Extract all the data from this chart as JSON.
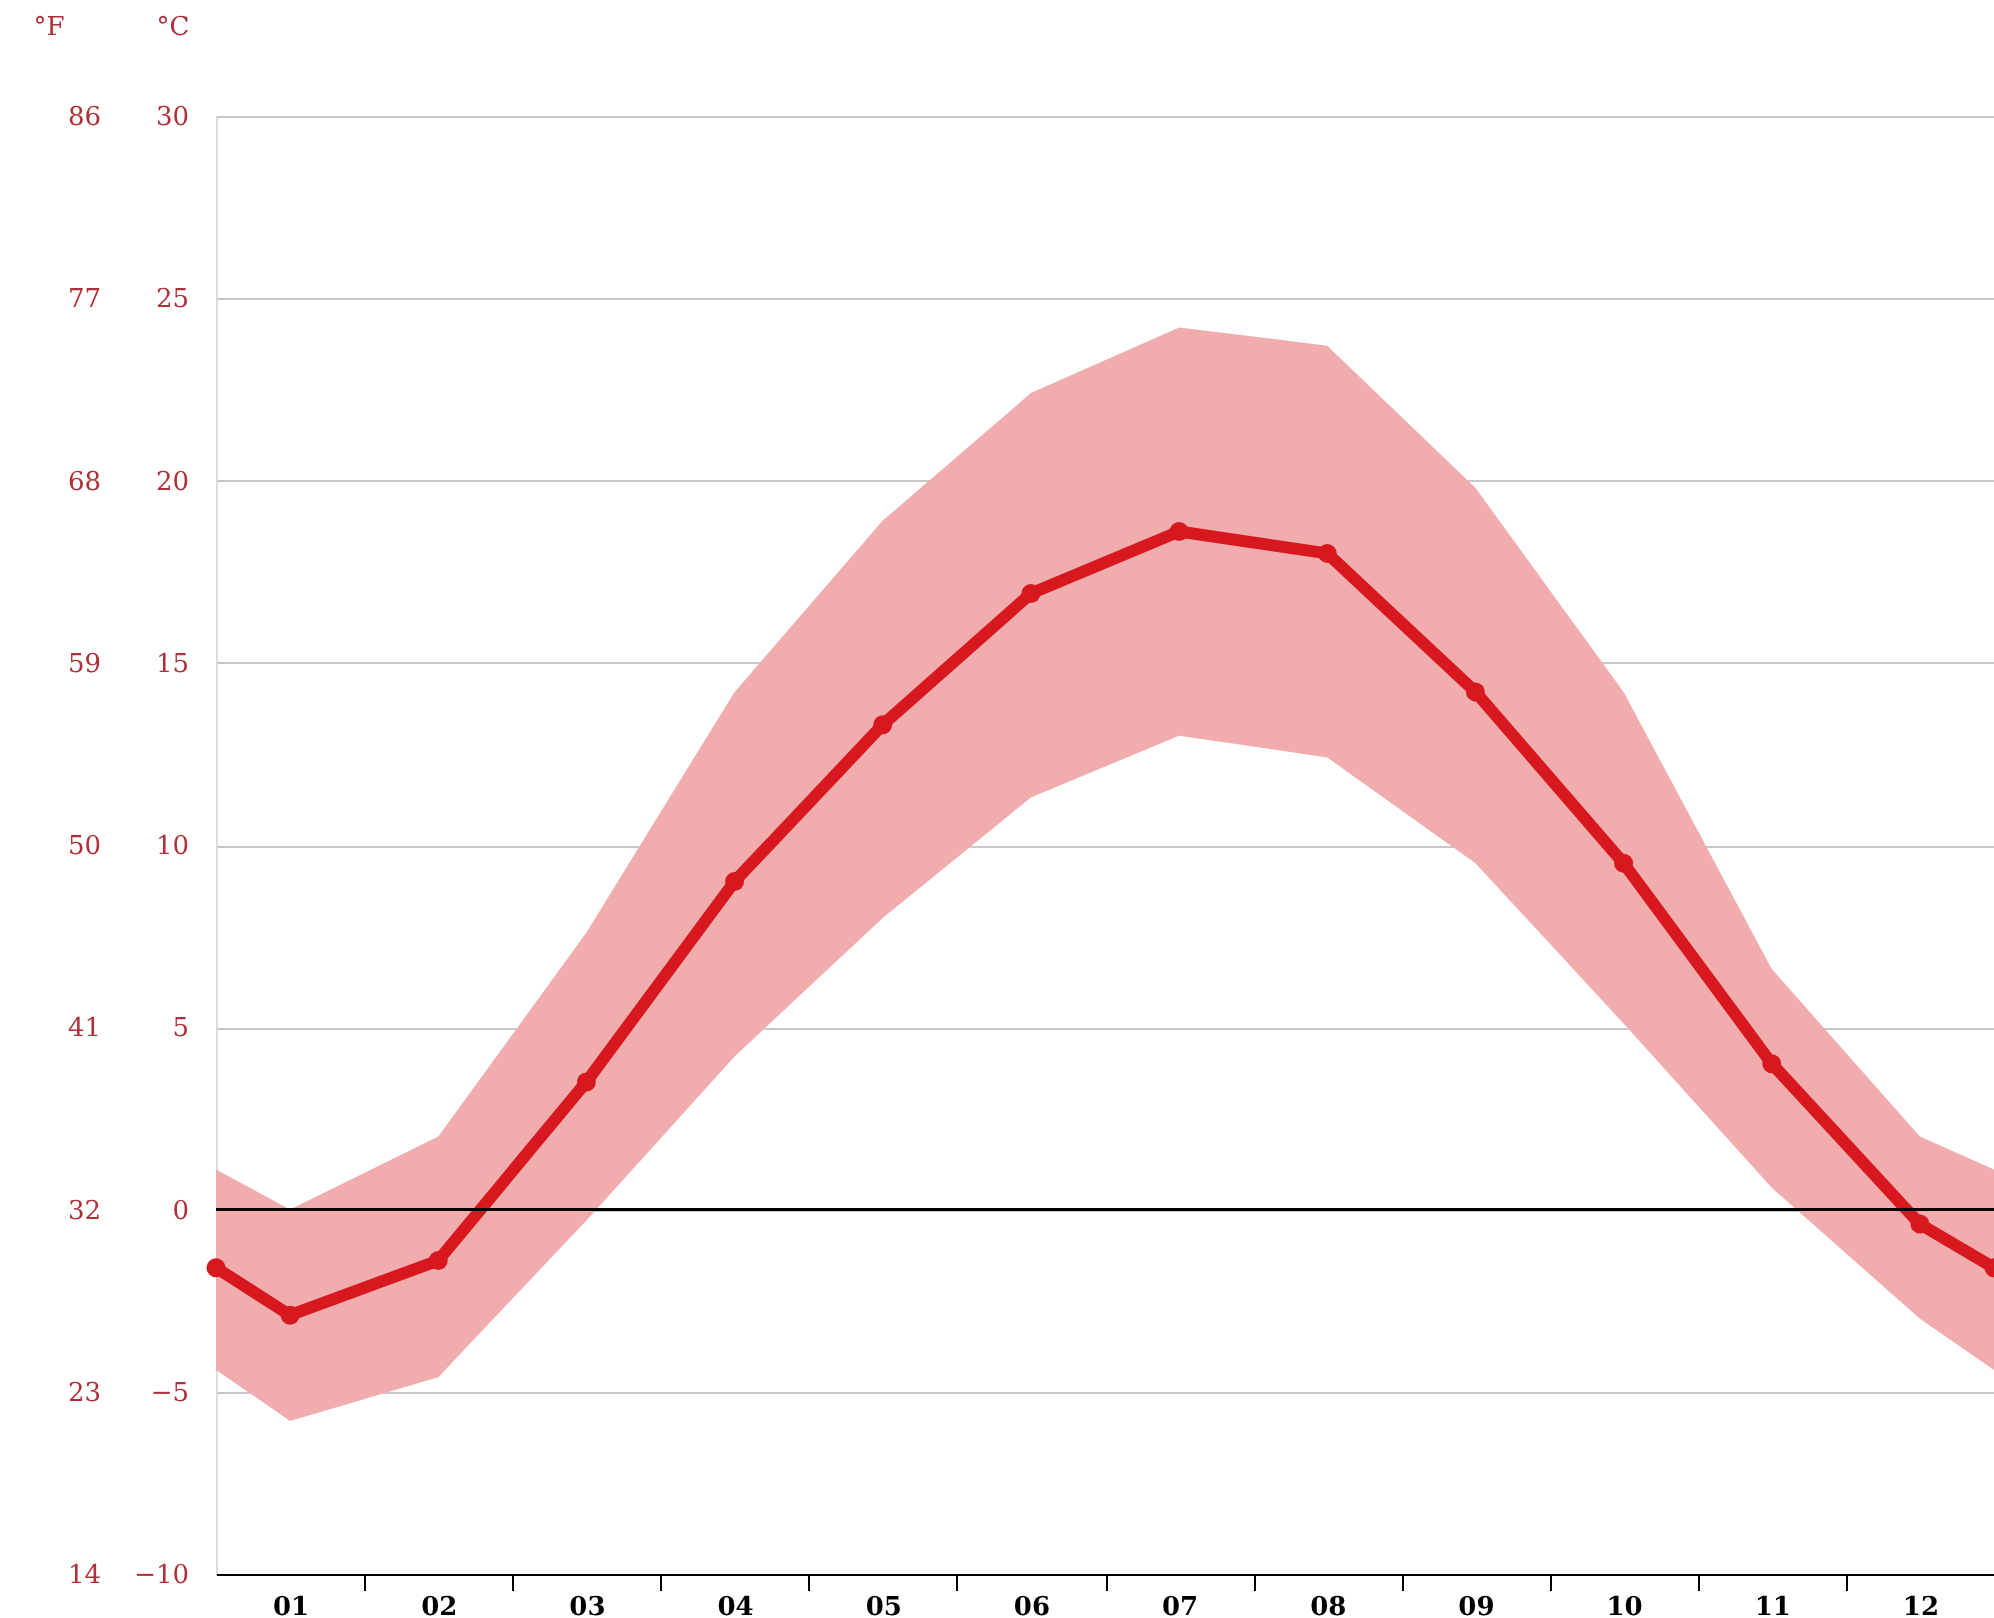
{
  "chart_data": {
    "type": "line",
    "x": [
      0.5,
      1,
      2,
      3,
      4,
      5,
      6,
      7,
      8,
      9,
      10,
      11,
      12,
      12.5
    ],
    "series": [
      {
        "color": "#d7191f",
        "values": [
          -1.6,
          -2.9,
          -1.4,
          3.5,
          9.0,
          13.3,
          16.9,
          18.6,
          18.0,
          14.2,
          9.5,
          4.0,
          -0.4,
          -1.6
        ],
        "lower": [
          -4.4,
          -5.8,
          -4.6,
          -0.3,
          4.2,
          8.0,
          11.3,
          13.0,
          12.4,
          9.5,
          5.1,
          0.6,
          -3.0,
          -4.4
        ],
        "upper": [
          1.1,
          0.0,
          2.0,
          7.6,
          14.2,
          18.9,
          22.4,
          24.2,
          23.7,
          19.8,
          14.2,
          6.6,
          2.0,
          1.1
        ]
      }
    ],
    "ylabel": "°C",
    "y2label": "°F",
    "xlim": [
      0.5,
      12.5
    ],
    "xticks": [
      {
        "value": 1,
        "label": "01"
      },
      {
        "value": 1.5,
        "label": null
      },
      {
        "value": 2,
        "label": "02"
      },
      {
        "value": 2.5,
        "label": null
      },
      {
        "value": 3,
        "label": "03"
      },
      {
        "value": 3.5,
        "label": null
      },
      {
        "value": 4,
        "label": "04"
      },
      {
        "value": 4.5,
        "label": null
      },
      {
        "value": 5,
        "label": "05"
      },
      {
        "value": 5.5,
        "label": null
      },
      {
        "value": 6,
        "label": "06"
      },
      {
        "value": 6.5,
        "label": null
      },
      {
        "value": 7,
        "label": "07"
      },
      {
        "value": 7.5,
        "label": null
      },
      {
        "value": 8,
        "label": "08"
      },
      {
        "value": 8.5,
        "label": null
      },
      {
        "value": 9,
        "label": "09"
      },
      {
        "value": 9.5,
        "label": null
      },
      {
        "value": 10,
        "label": "10"
      },
      {
        "value": 10.5,
        "label": null
      },
      {
        "value": 11,
        "label": "11"
      },
      {
        "value": 11.5,
        "label": null
      },
      {
        "value": 12,
        "label": "12"
      }
    ],
    "ylim": [
      -10,
      30
    ],
    "yticks": [
      -10,
      -5,
      0,
      5,
      10,
      15,
      20,
      25,
      30
    ],
    "y2lim": [
      14,
      86
    ],
    "y2ticks": [
      14,
      23,
      32,
      41,
      50,
      59,
      68,
      77,
      86
    ],
    "ref_lines": [
      {
        "axis": "y",
        "value": 0,
        "color": "#000000"
      }
    ],
    "grid": "y",
    "marker": "circle",
    "line_style": "solid"
  }
}
